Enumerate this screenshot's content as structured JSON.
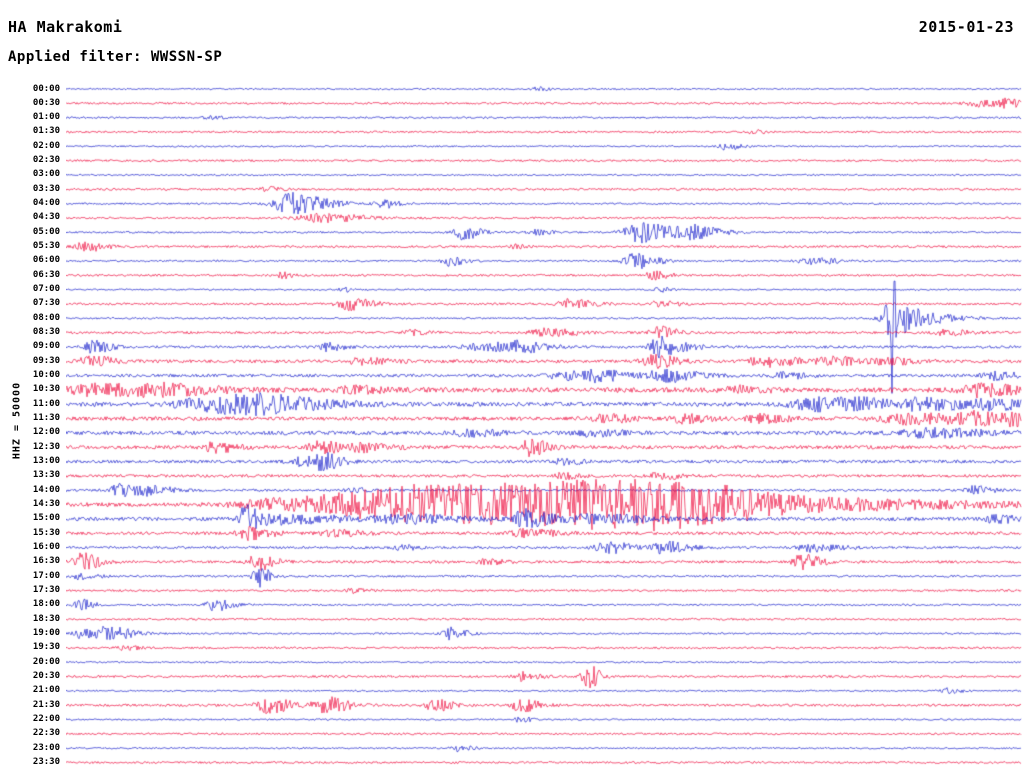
{
  "header": {
    "station": "HA Makrakomi",
    "date": "2015-01-23",
    "filter_label": "Applied filter: WWSSN-SP"
  },
  "y_axis_label": "HHZ = 50000",
  "colors": {
    "background": "#ffffff",
    "text": "#000000",
    "trace_blue": "#1b22cc",
    "trace_red": "#ee1040"
  },
  "chart_data": {
    "type": "line",
    "title": "Helicorder day plot, station HA Makrakomi, 2015-01-23, filter WWSSN-SP",
    "row_interval_minutes": 30,
    "time_span": "00:00-23:30",
    "amplitude_units": "pixels_half_height_approx",
    "event_format": "[x_fraction_of_row, peak_amplitude, attack_width_fraction]",
    "rows": [
      {
        "label": "00:00",
        "color": "blue",
        "noise": 0.8,
        "events": [
          [
            0.49,
            2.5,
            0.004
          ]
        ]
      },
      {
        "label": "00:30",
        "color": "red",
        "noise": 1.0,
        "events": [
          [
            0.955,
            3,
            0.01
          ],
          [
            0.985,
            3,
            0.008
          ]
        ]
      },
      {
        "label": "01:00",
        "color": "blue",
        "noise": 0.9,
        "events": [
          [
            0.15,
            2,
            0.004
          ]
        ]
      },
      {
        "label": "01:30",
        "color": "red",
        "noise": 1.0,
        "events": [
          [
            0.72,
            2,
            0.004
          ]
        ]
      },
      {
        "label": "02:00",
        "color": "blue",
        "noise": 0.8,
        "events": [
          [
            0.69,
            3.5,
            0.005
          ]
        ]
      },
      {
        "label": "02:30",
        "color": "red",
        "noise": 1.0,
        "events": []
      },
      {
        "label": "03:00",
        "color": "blue",
        "noise": 0.8,
        "events": []
      },
      {
        "label": "03:30",
        "color": "red",
        "noise": 1.1,
        "events": [
          [
            0.21,
            2,
            0.005
          ]
        ]
      },
      {
        "label": "04:00",
        "color": "blue",
        "noise": 0.9,
        "events": [
          [
            0.235,
            11,
            0.012
          ],
          [
            0.33,
            5,
            0.005
          ]
        ]
      },
      {
        "label": "04:30",
        "color": "red",
        "noise": 1.0,
        "events": [
          [
            0.265,
            4,
            0.015
          ]
        ]
      },
      {
        "label": "05:00",
        "color": "blue",
        "noise": 0.9,
        "events": [
          [
            0.415,
            7,
            0.006
          ],
          [
            0.6,
            10,
            0.012
          ],
          [
            0.655,
            6,
            0.01
          ],
          [
            0.49,
            3,
            0.005
          ]
        ]
      },
      {
        "label": "05:30",
        "color": "red",
        "noise": 1.1,
        "events": [
          [
            0.02,
            4.5,
            0.008
          ],
          [
            0.47,
            2,
            0.004
          ]
        ]
      },
      {
        "label": "06:00",
        "color": "blue",
        "noise": 0.9,
        "events": [
          [
            0.4,
            5,
            0.005
          ],
          [
            0.595,
            8,
            0.008
          ],
          [
            0.78,
            3,
            0.01
          ]
        ]
      },
      {
        "label": "06:30",
        "color": "red",
        "noise": 1.0,
        "events": [
          [
            0.225,
            3,
            0.004
          ],
          [
            0.615,
            4,
            0.006
          ]
        ]
      },
      {
        "label": "07:00",
        "color": "blue",
        "noise": 0.8,
        "events": [
          [
            0.29,
            2,
            0.004
          ],
          [
            0.62,
            2.5,
            0.004
          ]
        ]
      },
      {
        "label": "07:30",
        "color": "red",
        "noise": 1.1,
        "events": [
          [
            0.295,
            6,
            0.008
          ],
          [
            0.525,
            5,
            0.008
          ],
          [
            0.62,
            3,
            0.006
          ]
        ]
      },
      {
        "label": "08:00",
        "color": "blue",
        "noise": 0.9,
        "events": [
          [
            0.8635,
            80,
            0.0008
          ],
          [
            0.862,
            16,
            0.004
          ],
          [
            0.875,
            10,
            0.014
          ]
        ]
      },
      {
        "label": "08:30",
        "color": "red",
        "noise": 1.2,
        "events": [
          [
            0.5,
            4,
            0.01
          ],
          [
            0.62,
            6,
            0.006
          ],
          [
            0.36,
            2.5,
            0.006
          ],
          [
            0.92,
            3,
            0.008
          ]
        ]
      },
      {
        "label": "09:00",
        "color": "blue",
        "noise": 1.3,
        "events": [
          [
            0.027,
            6,
            0.006
          ],
          [
            0.27,
            4,
            0.006
          ],
          [
            0.44,
            4,
            0.015
          ],
          [
            0.475,
            4,
            0.008
          ],
          [
            0.615,
            9,
            0.005
          ],
          [
            0.63,
            4,
            0.01
          ]
        ]
      },
      {
        "label": "09:30",
        "color": "red",
        "noise": 1.6,
        "events": [
          [
            0.025,
            5,
            0.008
          ],
          [
            0.31,
            3,
            0.01
          ],
          [
            0.615,
            6,
            0.008
          ],
          [
            0.73,
            5,
            0.012
          ],
          [
            0.8,
            4,
            0.01
          ],
          [
            0.86,
            3,
            0.01
          ]
        ]
      },
      {
        "label": "10:00",
        "color": "blue",
        "noise": 1.5,
        "events": [
          [
            0.555,
            5,
            0.01
          ],
          [
            0.625,
            6,
            0.012
          ],
          [
            0.52,
            4,
            0.01
          ],
          [
            0.75,
            3,
            0.008
          ],
          [
            0.97,
            4,
            0.008
          ]
        ]
      },
      {
        "label": "10:30",
        "color": "red",
        "noise": 2.4,
        "events": [
          [
            0.03,
            5,
            0.02
          ],
          [
            0.1,
            4,
            0.02
          ],
          [
            0.3,
            3,
            0.01
          ],
          [
            0.955,
            6,
            0.012
          ],
          [
            0.7,
            3,
            0.01
          ]
        ]
      },
      {
        "label": "11:00",
        "color": "blue",
        "noise": 2.1,
        "events": [
          [
            0.145,
            6,
            0.02
          ],
          [
            0.2,
            7,
            0.025
          ],
          [
            0.78,
            6,
            0.015
          ],
          [
            0.84,
            4,
            0.02
          ],
          [
            0.9,
            4,
            0.02
          ],
          [
            0.97,
            4,
            0.01
          ]
        ]
      },
      {
        "label": "11:30",
        "color": "red",
        "noise": 1.9,
        "events": [
          [
            0.565,
            4,
            0.008
          ],
          [
            0.645,
            4,
            0.008
          ],
          [
            0.725,
            4,
            0.01
          ],
          [
            0.88,
            5,
            0.02
          ],
          [
            0.95,
            5,
            0.015
          ],
          [
            0.995,
            5,
            0.008
          ]
        ]
      },
      {
        "label": "12:00",
        "color": "blue",
        "noise": 1.9,
        "events": [
          [
            0.42,
            3,
            0.01
          ],
          [
            0.55,
            3,
            0.01
          ],
          [
            0.9,
            4,
            0.02
          ]
        ]
      },
      {
        "label": "12:30",
        "color": "red",
        "noise": 1.7,
        "events": [
          [
            0.155,
            5,
            0.008
          ],
          [
            0.265,
            6,
            0.008
          ],
          [
            0.485,
            8,
            0.006
          ],
          [
            0.31,
            4,
            0.01
          ]
        ]
      },
      {
        "label": "13:00",
        "color": "blue",
        "noise": 1.5,
        "events": [
          [
            0.245,
            5,
            0.008
          ],
          [
            0.27,
            7,
            0.006
          ],
          [
            0.52,
            3,
            0.006
          ]
        ]
      },
      {
        "label": "13:30",
        "color": "red",
        "noise": 1.4,
        "events": [
          [
            0.52,
            3,
            0.006
          ],
          [
            0.62,
            3,
            0.008
          ]
        ]
      },
      {
        "label": "14:00",
        "color": "blue",
        "noise": 1.2,
        "events": [
          [
            0.055,
            6,
            0.008
          ],
          [
            0.09,
            4,
            0.008
          ],
          [
            0.95,
            4,
            0.006
          ],
          [
            0.3,
            2.5,
            0.005
          ]
        ]
      },
      {
        "label": "14:30",
        "color": "red",
        "noise": 2.0,
        "events": [
          [
            0.22,
            5,
            0.03
          ],
          [
            0.3,
            8,
            0.03
          ],
          [
            0.38,
            12,
            0.04
          ],
          [
            0.47,
            11,
            0.05
          ],
          [
            0.56,
            12,
            0.04
          ],
          [
            0.63,
            9,
            0.03
          ],
          [
            0.7,
            4,
            0.04
          ],
          [
            0.85,
            3,
            0.05
          ]
        ]
      },
      {
        "label": "15:00",
        "color": "blue",
        "noise": 1.8,
        "events": [
          [
            0.185,
            15,
            0.004
          ],
          [
            0.22,
            5,
            0.02
          ],
          [
            0.48,
            9,
            0.008
          ],
          [
            0.55,
            4,
            0.02
          ],
          [
            0.35,
            4,
            0.02
          ],
          [
            0.97,
            4,
            0.008
          ]
        ]
      },
      {
        "label": "15:30",
        "color": "red",
        "noise": 1.5,
        "events": [
          [
            0.19,
            6,
            0.008
          ],
          [
            0.48,
            4,
            0.01
          ],
          [
            0.28,
            3,
            0.01
          ]
        ]
      },
      {
        "label": "16:00",
        "color": "blue",
        "noise": 1.2,
        "events": [
          [
            0.565,
            6,
            0.008
          ],
          [
            0.625,
            6,
            0.008
          ],
          [
            0.78,
            4,
            0.01
          ],
          [
            0.35,
            2.5,
            0.006
          ]
        ]
      },
      {
        "label": "16:30",
        "color": "red",
        "noise": 1.3,
        "events": [
          [
            0.015,
            9,
            0.006
          ],
          [
            0.2,
            8,
            0.006
          ],
          [
            0.77,
            8,
            0.006
          ],
          [
            0.44,
            3,
            0.006
          ]
        ]
      },
      {
        "label": "17:00",
        "color": "blue",
        "noise": 1.0,
        "events": [
          [
            0.2,
            11,
            0.004
          ],
          [
            0.015,
            3,
            0.006
          ]
        ]
      },
      {
        "label": "17:30",
        "color": "red",
        "noise": 1.0,
        "events": [
          [
            0.3,
            2,
            0.005
          ]
        ]
      },
      {
        "label": "18:00",
        "color": "blue",
        "noise": 0.9,
        "events": [
          [
            0.015,
            5,
            0.005
          ],
          [
            0.155,
            6,
            0.006
          ]
        ]
      },
      {
        "label": "18:30",
        "color": "red",
        "noise": 1.0,
        "events": []
      },
      {
        "label": "19:00",
        "color": "blue",
        "noise": 0.9,
        "events": [
          [
            0.015,
            5,
            0.006
          ],
          [
            0.045,
            7,
            0.008
          ],
          [
            0.4,
            6,
            0.006
          ]
        ]
      },
      {
        "label": "19:30",
        "color": "red",
        "noise": 1.0,
        "events": [
          [
            0.06,
            2,
            0.006
          ]
        ]
      },
      {
        "label": "20:00",
        "color": "blue",
        "noise": 0.8,
        "events": []
      },
      {
        "label": "20:30",
        "color": "red",
        "noise": 1.1,
        "events": [
          [
            0.475,
            5,
            0.006
          ],
          [
            0.545,
            12,
            0.004
          ]
        ]
      },
      {
        "label": "21:00",
        "color": "blue",
        "noise": 0.8,
        "events": [
          [
            0.92,
            2.5,
            0.005
          ]
        ]
      },
      {
        "label": "21:30",
        "color": "red",
        "noise": 1.2,
        "events": [
          [
            0.21,
            8,
            0.008
          ],
          [
            0.27,
            8,
            0.008
          ],
          [
            0.385,
            6,
            0.006
          ],
          [
            0.475,
            7,
            0.006
          ]
        ]
      },
      {
        "label": "22:00",
        "color": "blue",
        "noise": 0.8,
        "events": [
          [
            0.475,
            3,
            0.004
          ]
        ]
      },
      {
        "label": "22:30",
        "color": "red",
        "noise": 1.0,
        "events": []
      },
      {
        "label": "23:00",
        "color": "blue",
        "noise": 0.8,
        "events": [
          [
            0.41,
            3,
            0.005
          ]
        ]
      },
      {
        "label": "23:30",
        "color": "red",
        "noise": 1.0,
        "events": []
      }
    ]
  }
}
